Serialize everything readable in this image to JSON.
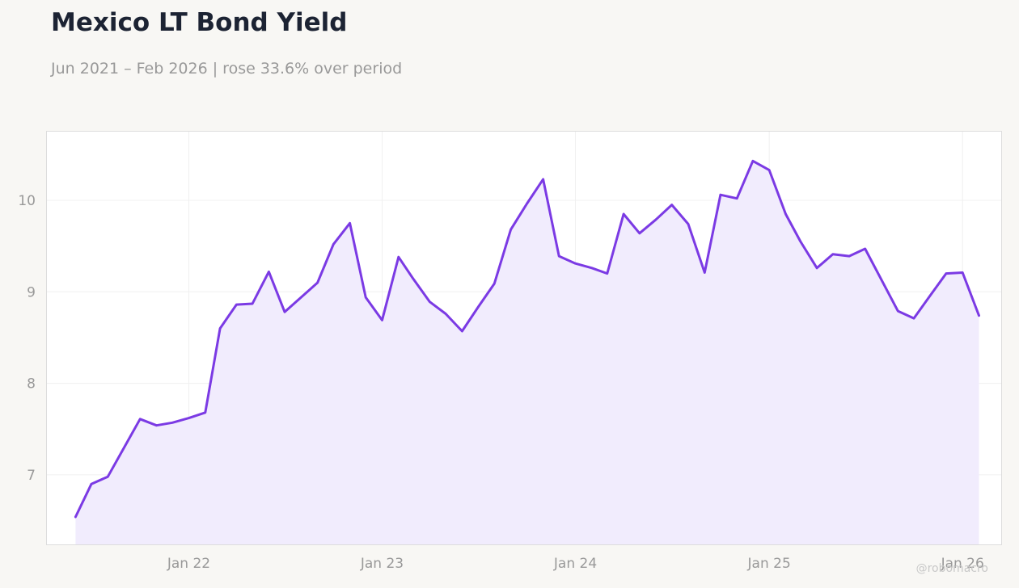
{
  "title": "Mexico LT Bond Yield",
  "subtitle": "Jun 2021 – Feb 2026 | rose 33.6% over period",
  "watermark": "@robomacro",
  "colors": {
    "line": "#7b3ae4",
    "fill": "#f1ecfd",
    "background": "#f8f7f4",
    "plot_background": "#ffffff",
    "grid": "#f0f0f0",
    "tick_text": "#999999"
  },
  "chart_data": {
    "type": "area",
    "title": "Mexico LT Bond Yield",
    "subtitle": "Jun 2021 – Feb 2026 | rose 33.6% over period",
    "xlabel": "",
    "ylabel": "",
    "grid": true,
    "legend": "none",
    "xlim": [
      "2021-04-08",
      "2026-03-15"
    ],
    "ylim": [
      6.24,
      10.75
    ],
    "x_ticks": [
      {
        "date": "2022-01-01",
        "label": "Jan 22"
      },
      {
        "date": "2023-01-01",
        "label": "Jan 23"
      },
      {
        "date": "2024-01-01",
        "label": "Jan 24"
      },
      {
        "date": "2025-01-01",
        "label": "Jan 25"
      },
      {
        "date": "2026-01-01",
        "label": "Jan 26"
      }
    ],
    "y_ticks": [
      7,
      8,
      9,
      10
    ],
    "series": [
      {
        "points": [
          [
            "2021-06-01",
            6.54
          ],
          [
            "2021-07-01",
            6.9
          ],
          [
            "2021-08-01",
            6.98
          ],
          [
            "2021-09-01",
            7.3
          ],
          [
            "2021-10-01",
            7.61
          ],
          [
            "2021-11-01",
            7.54
          ],
          [
            "2021-12-01",
            7.57
          ],
          [
            "2022-01-01",
            7.62
          ],
          [
            "2022-02-01",
            7.68
          ],
          [
            "2022-03-01",
            8.6
          ],
          [
            "2022-04-01",
            8.86
          ],
          [
            "2022-05-01",
            8.87
          ],
          [
            "2022-06-01",
            9.22
          ],
          [
            "2022-07-01",
            8.78
          ],
          [
            "2022-08-01",
            8.94
          ],
          [
            "2022-09-01",
            9.1
          ],
          [
            "2022-10-01",
            9.52
          ],
          [
            "2022-11-01",
            9.75
          ],
          [
            "2022-12-01",
            8.94
          ],
          [
            "2023-01-01",
            8.69
          ],
          [
            "2023-02-01",
            9.38
          ],
          [
            "2023-03-01",
            9.14
          ],
          [
            "2023-04-01",
            8.89
          ],
          [
            "2023-05-01",
            8.76
          ],
          [
            "2023-06-01",
            8.57
          ],
          [
            "2023-07-01",
            8.83
          ],
          [
            "2023-08-01",
            9.09
          ],
          [
            "2023-09-01",
            9.68
          ],
          [
            "2023-10-01",
            9.96
          ],
          [
            "2023-11-01",
            10.23
          ],
          [
            "2023-12-01",
            9.39
          ],
          [
            "2024-01-01",
            9.31
          ],
          [
            "2024-02-01",
            9.26
          ],
          [
            "2024-03-01",
            9.2
          ],
          [
            "2024-04-01",
            9.85
          ],
          [
            "2024-05-01",
            9.64
          ],
          [
            "2024-06-01",
            9.79
          ],
          [
            "2024-07-01",
            9.95
          ],
          [
            "2024-08-01",
            9.74
          ],
          [
            "2024-09-01",
            9.21
          ],
          [
            "2024-10-01",
            10.06
          ],
          [
            "2024-11-01",
            10.02
          ],
          [
            "2024-12-01",
            10.43
          ],
          [
            "2025-01-01",
            10.33
          ],
          [
            "2025-02-01",
            9.85
          ],
          [
            "2025-03-01",
            9.55
          ],
          [
            "2025-04-01",
            9.26
          ],
          [
            "2025-05-01",
            9.41
          ],
          [
            "2025-06-01",
            9.39
          ],
          [
            "2025-07-01",
            9.47
          ],
          [
            "2025-08-01",
            9.13
          ],
          [
            "2025-09-01",
            8.79
          ],
          [
            "2025-10-01",
            8.71
          ],
          [
            "2025-11-01",
            8.96
          ],
          [
            "2025-12-01",
            9.2
          ],
          [
            "2026-01-01",
            9.21
          ],
          [
            "2026-02-01",
            8.74
          ]
        ]
      }
    ]
  }
}
